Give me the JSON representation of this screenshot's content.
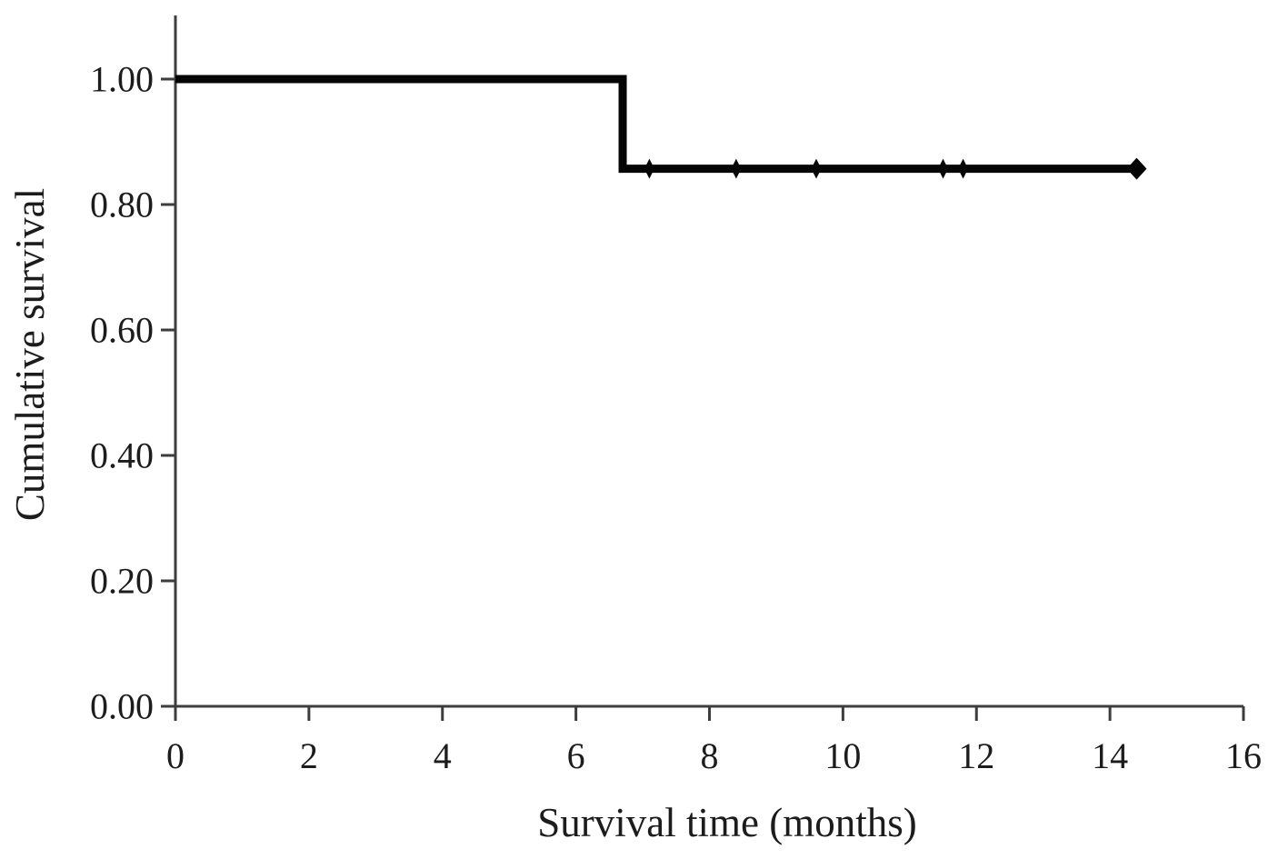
{
  "figure": {
    "kind": "Kaplan-Meier survival plot"
  },
  "chart_data": {
    "type": "line",
    "variant": "kaplan-meier-step",
    "title": "",
    "xlabel": "Survival time (months)",
    "ylabel": "Cumulative survival",
    "xlim": [
      0,
      16
    ],
    "ylim": [
      0,
      1.1
    ],
    "grid": false,
    "legend": "none",
    "axis_color": "#3d3d3d",
    "curve_color": "#050505",
    "x_ticks": [
      {
        "v": 0,
        "label": "0"
      },
      {
        "v": 2,
        "label": "2"
      },
      {
        "v": 4,
        "label": "4"
      },
      {
        "v": 6,
        "label": "6"
      },
      {
        "v": 8,
        "label": "8"
      },
      {
        "v": 10,
        "label": "10"
      },
      {
        "v": 12,
        "label": "12"
      },
      {
        "v": 14,
        "label": "14"
      },
      {
        "v": 16,
        "label": "16"
      }
    ],
    "y_ticks": [
      {
        "v": 0.0,
        "label": "0.00"
      },
      {
        "v": 0.2,
        "label": "0.20"
      },
      {
        "v": 0.4,
        "label": "0.40"
      },
      {
        "v": 0.6,
        "label": "0.60"
      },
      {
        "v": 0.8,
        "label": "0.80"
      },
      {
        "v": 1.0,
        "label": "1.00"
      }
    ],
    "series": [
      {
        "name": "cumulative-survival",
        "step_points": [
          {
            "x": 0.0,
            "y": 1.0
          },
          {
            "x": 6.7,
            "y": 1.0
          },
          {
            "x": 6.7,
            "y": 0.857
          },
          {
            "x": 14.4,
            "y": 0.857
          }
        ],
        "event_drop": {
          "time": 6.7,
          "from": 1.0,
          "to": 0.857
        },
        "censor_marks": [
          {
            "x": 7.1,
            "y": 0.857
          },
          {
            "x": 8.4,
            "y": 0.857
          },
          {
            "x": 9.6,
            "y": 0.857
          },
          {
            "x": 11.5,
            "y": 0.857
          },
          {
            "x": 11.8,
            "y": 0.857
          },
          {
            "x": 14.4,
            "y": 0.857,
            "end": true
          }
        ]
      }
    ]
  }
}
